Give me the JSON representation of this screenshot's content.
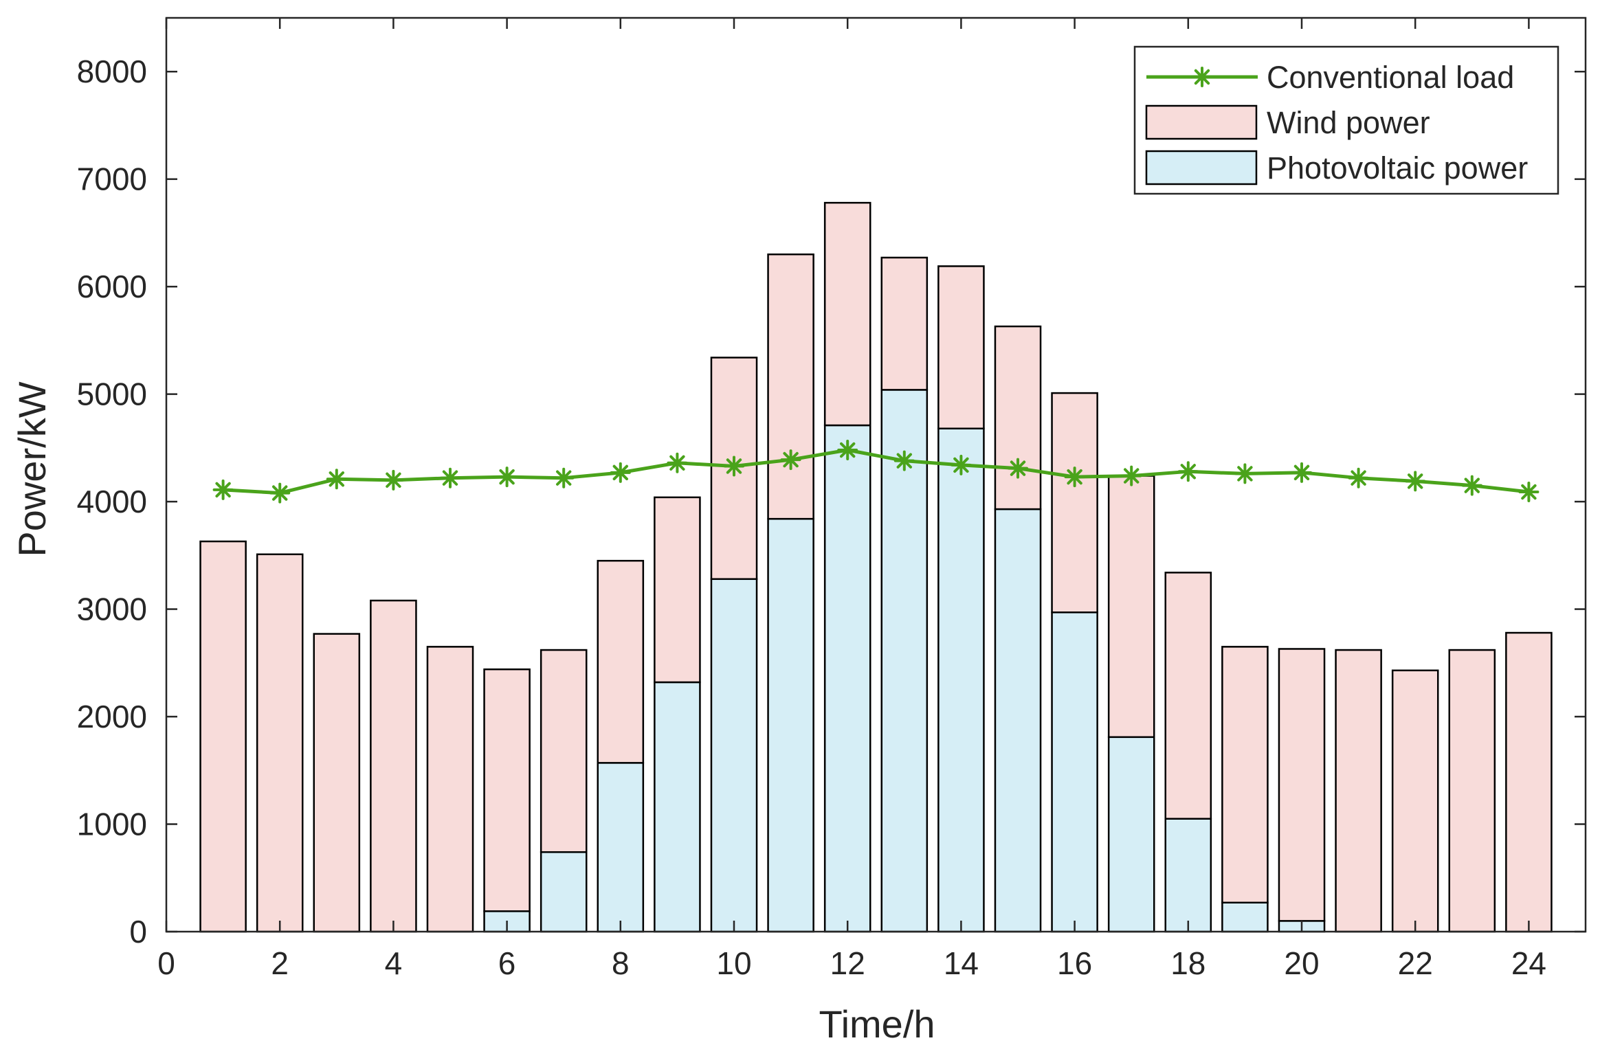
{
  "chart_data": {
    "type": "bar",
    "stacked": true,
    "title": "",
    "xlabel": "Time/h",
    "ylabel": "Power/kW",
    "xlim": [
      0,
      25
    ],
    "ylim": [
      0,
      8500
    ],
    "xticks": [
      0,
      2,
      4,
      6,
      8,
      10,
      12,
      14,
      16,
      18,
      20,
      22,
      24
    ],
    "yticks": [
      0,
      1000,
      2000,
      3000,
      4000,
      5000,
      6000,
      7000,
      8000
    ],
    "x": [
      1,
      2,
      3,
      4,
      5,
      6,
      7,
      8,
      9,
      10,
      11,
      12,
      13,
      14,
      15,
      16,
      17,
      18,
      19,
      20,
      21,
      22,
      23,
      24
    ],
    "series": [
      {
        "name": "Photovoltaic power",
        "kind": "bar",
        "color": "#d6eef6",
        "values": [
          0,
          0,
          0,
          0,
          0,
          190,
          740,
          1570,
          2320,
          3280,
          3840,
          4710,
          5040,
          4680,
          3930,
          2970,
          1810,
          1050,
          270,
          100,
          0,
          0,
          0,
          0
        ]
      },
      {
        "name": "Wind power",
        "kind": "bar",
        "color": "#f8dcda",
        "values": [
          3630,
          3510,
          2770,
          3080,
          2650,
          2250,
          1880,
          1880,
          1720,
          2060,
          2460,
          2070,
          1230,
          1510,
          1700,
          2040,
          2430,
          2290,
          2380,
          2530,
          2620,
          2430,
          2620,
          2780
        ]
      },
      {
        "name": "Conventional load",
        "kind": "line",
        "color": "#4aa31b",
        "marker": "asterisk",
        "values": [
          4110,
          4080,
          4210,
          4200,
          4220,
          4230,
          4220,
          4270,
          4360,
          4330,
          4390,
          4480,
          4380,
          4340,
          4310,
          4230,
          4240,
          4280,
          4260,
          4270,
          4220,
          4190,
          4150,
          4090
        ]
      }
    ],
    "legend": {
      "position": "top-right",
      "entries": [
        "Conventional load",
        "Wind power",
        "Photovoltaic power"
      ]
    },
    "grid": false
  }
}
